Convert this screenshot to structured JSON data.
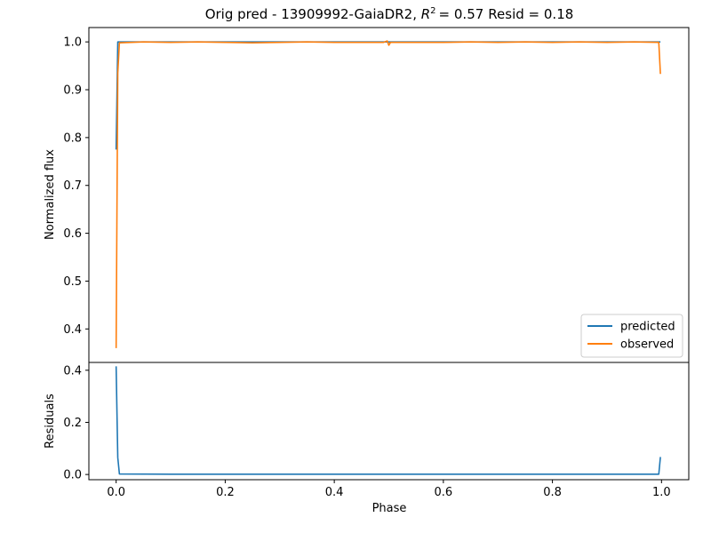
{
  "chart_data": [
    {
      "type": "line",
      "title_prefix": "Orig pred - 13909992-GaiaDR2, ",
      "title_r2": "R",
      "title_r2_sup": "2",
      "title_r2_value": "= 0.57",
      "title_resid": "Resid = 0.18",
      "xlabel": "",
      "ylabel": "Normalized flux",
      "xlim": [
        -0.05,
        1.05
      ],
      "ylim": [
        0.33,
        1.03
      ],
      "yticks": [
        0.4,
        0.5,
        0.6,
        0.7,
        0.8,
        0.9,
        1.0
      ],
      "ytick_labels": [
        "0.4",
        "0.5",
        "0.6",
        "0.7",
        "0.8",
        "0.9",
        "1.0"
      ],
      "legend_position": "lower-right",
      "series": [
        {
          "name": "predicted",
          "color": "#1f77b4",
          "points": [
            [
              0.0,
              0.775
            ],
            [
              0.003,
              1.0
            ],
            [
              0.01,
              1.0
            ],
            [
              0.25,
              1.0
            ],
            [
              0.5,
              1.0
            ],
            [
              0.75,
              1.0
            ],
            [
              0.995,
              1.0
            ],
            [
              0.998,
              1.0
            ]
          ]
        },
        {
          "name": "observed",
          "color": "#ff7f0e",
          "points": [
            [
              0.0,
              0.36
            ],
            [
              0.003,
              0.935
            ],
            [
              0.006,
              0.998
            ],
            [
              0.05,
              1.0
            ],
            [
              0.1,
              0.999
            ],
            [
              0.15,
              1.0
            ],
            [
              0.2,
              0.999
            ],
            [
              0.25,
              0.998
            ],
            [
              0.3,
              0.999
            ],
            [
              0.35,
              1.0
            ],
            [
              0.4,
              0.999
            ],
            [
              0.45,
              0.999
            ],
            [
              0.49,
              0.999
            ],
            [
              0.497,
              1.002
            ],
            [
              0.5,
              0.993
            ],
            [
              0.503,
              0.999
            ],
            [
              0.55,
              0.999
            ],
            [
              0.6,
              0.999
            ],
            [
              0.65,
              1.0
            ],
            [
              0.7,
              0.999
            ],
            [
              0.75,
              1.0
            ],
            [
              0.8,
              0.999
            ],
            [
              0.85,
              1.0
            ],
            [
              0.9,
              0.999
            ],
            [
              0.95,
              1.0
            ],
            [
              0.995,
              0.999
            ],
            [
              0.998,
              0.933
            ]
          ]
        }
      ]
    },
    {
      "type": "line",
      "xlabel": "Phase",
      "ylabel": "Residuals",
      "xlim": [
        -0.05,
        1.05
      ],
      "ylim": [
        -0.02,
        0.43
      ],
      "xticks": [
        0.0,
        0.2,
        0.4,
        0.6,
        0.8,
        1.0
      ],
      "xtick_labels": [
        "0.0",
        "0.2",
        "0.4",
        "0.6",
        "0.8",
        "1.0"
      ],
      "yticks": [
        0.0,
        0.2,
        0.4
      ],
      "ytick_labels": [
        "0.0",
        "0.2",
        "0.4"
      ],
      "series": [
        {
          "color": "#1f77b4",
          "points": [
            [
              0.0,
              0.415
            ],
            [
              0.003,
              0.065
            ],
            [
              0.006,
              0.002
            ],
            [
              0.1,
              0.001
            ],
            [
              0.3,
              0.001
            ],
            [
              0.5,
              0.001
            ],
            [
              0.7,
              0.001
            ],
            [
              0.9,
              0.001
            ],
            [
              0.995,
              0.001
            ],
            [
              0.998,
              0.067
            ]
          ]
        }
      ]
    }
  ]
}
